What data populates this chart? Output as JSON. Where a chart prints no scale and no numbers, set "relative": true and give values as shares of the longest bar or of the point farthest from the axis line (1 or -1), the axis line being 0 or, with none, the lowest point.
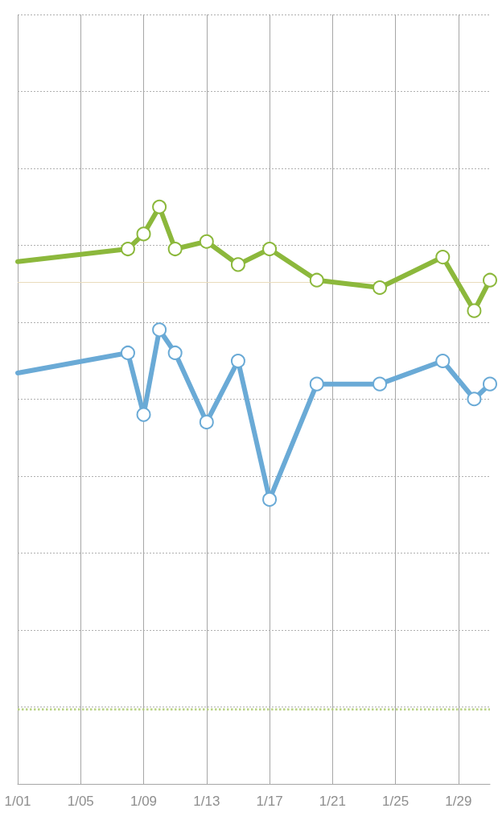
{
  "chart_data": {
    "type": "line",
    "relative": true,
    "x": [
      "--01-01",
      "--01-08",
      "--01-09",
      "--01-10",
      "--01-11",
      "--01-13",
      "--01-15",
      "--01-17",
      "--01-20",
      "--01-24",
      "--01-28",
      "--01-30",
      "--01-31"
    ],
    "xlim": [
      "--01-01",
      "--01-31"
    ],
    "xticks": [
      {
        "value": "--01-01",
        "label": "1/01"
      },
      {
        "value": "--01-05",
        "label": "1/05"
      },
      {
        "value": "--01-09",
        "label": "1/09"
      },
      {
        "value": "--01-13",
        "label": "1/13"
      },
      {
        "value": "--01-17",
        "label": "1/17"
      },
      {
        "value": "--01-21",
        "label": "1/21"
      },
      {
        "value": "--01-25",
        "label": "1/25"
      },
      {
        "value": "--01-29",
        "label": "1/29"
      }
    ],
    "series": [
      {
        "color": "#8cb83c",
        "values": [
          0.905,
          0.927,
          0.953,
          1,
          0.927,
          0.94,
          0.9,
          0.927,
          0.873,
          0.86,
          0.913,
          0.82,
          0.873
        ]
      },
      {
        "color": "#6aaad6",
        "values": [
          0.712,
          0.747,
          0.64,
          0.787,
          0.747,
          0.627,
          0.733,
          0.493,
          0.693,
          0.693,
          0.733,
          0.667,
          0.693
        ]
      }
    ],
    "ref_lines": [
      {
        "axis": "y",
        "value": 0.873,
        "color": "#eadcbc",
        "line_style": "solid"
      },
      {
        "axis": "y",
        "value": 0.133,
        "color": "#b6cf80",
        "line_style": "dotted"
      }
    ],
    "grid": true,
    "marker": "circle",
    "line_style": "solid"
  }
}
